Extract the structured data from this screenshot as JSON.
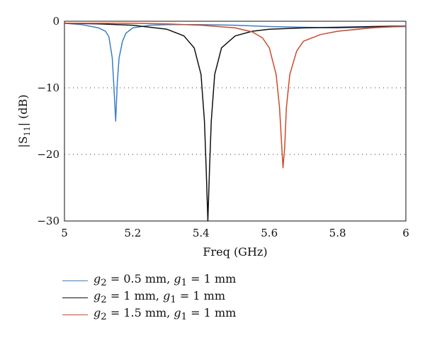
{
  "chart_data": {
    "type": "line",
    "xlabel": "Freq (GHz)",
    "xlim": [
      5,
      6
    ],
    "ylim": [
      -30,
      0
    ],
    "xticks": [
      "5",
      "5.2",
      "5.4",
      "5.6",
      "5.8",
      "6"
    ],
    "yticks": [
      "0",
      "−10",
      "−20",
      "−30"
    ],
    "grid": "dotted horizontal at -10 and -20",
    "legend_position": "below",
    "series": [
      {
        "name": "g2 = 0.5 mm, g1 = 1 mm",
        "color": "#3a7fc4",
        "x": [
          5.0,
          5.05,
          5.1,
          5.12,
          5.13,
          5.14,
          5.145,
          5.15,
          5.155,
          5.16,
          5.17,
          5.18,
          5.2,
          5.25,
          5.3,
          5.4,
          5.5,
          5.6,
          5.7,
          5.8,
          5.9,
          6.0
        ],
        "y": [
          -0.3,
          -0.5,
          -1.0,
          -1.5,
          -2.3,
          -5.5,
          -10.0,
          -15.0,
          -9.0,
          -5.5,
          -3.0,
          -1.8,
          -1.0,
          -0.6,
          -0.5,
          -0.5,
          -0.6,
          -0.8,
          -0.9,
          -1.0,
          -0.9,
          -0.8
        ]
      },
      {
        "name": "g2 = 1 mm, g1 = 1 mm",
        "color": "#111111",
        "x": [
          5.0,
          5.1,
          5.2,
          5.3,
          5.35,
          5.38,
          5.4,
          5.41,
          5.415,
          5.42,
          5.425,
          5.43,
          5.44,
          5.46,
          5.5,
          5.55,
          5.6,
          5.7,
          5.8,
          5.9,
          6.0
        ],
        "y": [
          -0.3,
          -0.4,
          -0.6,
          -1.2,
          -2.2,
          -4.0,
          -8.0,
          -15.0,
          -22.0,
          -30.0,
          -22.0,
          -15.0,
          -8.0,
          -4.0,
          -2.2,
          -1.5,
          -1.2,
          -1.0,
          -0.9,
          -0.8,
          -0.7
        ]
      },
      {
        "name": "g2 = 1.5 mm, g1 = 1 mm",
        "color": "#cc4a2c",
        "x": [
          5.0,
          5.1,
          5.2,
          5.3,
          5.4,
          5.5,
          5.55,
          5.58,
          5.6,
          5.62,
          5.63,
          5.64,
          5.645,
          5.65,
          5.66,
          5.68,
          5.7,
          5.75,
          5.8,
          5.9,
          6.0
        ],
        "y": [
          -0.3,
          -0.3,
          -0.3,
          -0.4,
          -0.6,
          -1.0,
          -1.6,
          -2.5,
          -4.0,
          -8.0,
          -13.0,
          -22.0,
          -19.0,
          -13.0,
          -8.0,
          -4.5,
          -3.0,
          -2.0,
          -1.5,
          -1.0,
          -0.7
        ]
      }
    ]
  },
  "axis": {
    "ylabel_main": "|S",
    "ylabel_sub": "11",
    "ylabel_tail": "| (dB)"
  },
  "legend": [
    {
      "g2": "2",
      "v2": " = 0.5 mm, ",
      "g1": "1",
      "v1": " = 1 mm"
    },
    {
      "g2": "2",
      "v2": " = 1 mm, ",
      "g1": "1",
      "v1": " = 1 mm"
    },
    {
      "g2": "2",
      "v2": " = 1.5 mm, ",
      "g1": "1",
      "v1": " = 1 mm"
    }
  ]
}
